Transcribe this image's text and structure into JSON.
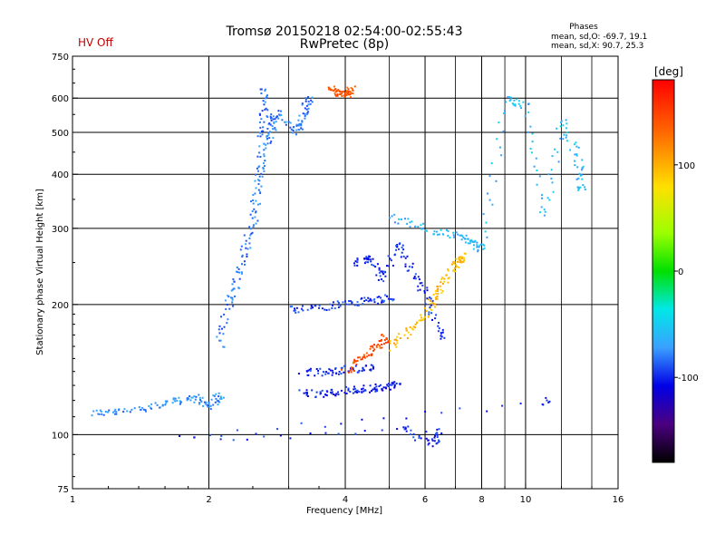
{
  "header": {
    "title_line1": "Tromsø 20150218 02:54:00-02:55:43",
    "title_line2": "RwPretec (8p)",
    "hv_status": "HV Off",
    "phases_label": "Phases",
    "phases_o": "mean, sd,O: -69.7, 19.1",
    "phases_x": "mean, sd,X:  90.7, 25.3"
  },
  "colors": {
    "hv_status": "#c00000",
    "grid": "#000000"
  },
  "chart_data": {
    "type": "scatter",
    "title": "Tromsø 20150218 02:54:00-02:55:43",
    "subtitle": "RwPretec (8p)",
    "xlabel": "Frequency [MHz]",
    "ylabel": "Stationary phase Virtual Height [km]",
    "x_scale": "log",
    "y_scale": "log",
    "xlim": [
      1,
      16
    ],
    "ylim": [
      75,
      750
    ],
    "x_ticks": [
      1,
      2,
      4,
      6,
      8,
      10,
      16
    ],
    "x_minor": [
      3,
      5,
      7,
      9,
      12,
      14
    ],
    "y_ticks": [
      75,
      100,
      200,
      300,
      400,
      500,
      600,
      750
    ],
    "colorbar": {
      "label": "[deg]",
      "range": [
        -180,
        180
      ],
      "ticks": [
        100,
        0,
        -100
      ]
    },
    "clusters": [
      {
        "name": "O-trace low band",
        "phase": -75,
        "points": [
          [
            1.1,
            113
          ],
          [
            1.25,
            113
          ],
          [
            1.5,
            117
          ],
          [
            1.7,
            120
          ],
          [
            1.85,
            122
          ],
          [
            2.0,
            117
          ],
          [
            2.1,
            123
          ]
        ]
      },
      {
        "name": "O-trace steep rise",
        "phase": -80,
        "points": [
          [
            2.1,
            160
          ],
          [
            2.2,
            200
          ],
          [
            2.3,
            230
          ],
          [
            2.4,
            270
          ],
          [
            2.5,
            320
          ],
          [
            2.55,
            380
          ],
          [
            2.6,
            430
          ],
          [
            2.62,
            520
          ],
          [
            2.65,
            620
          ]
        ]
      },
      {
        "name": "O-trace F layer top",
        "phase": -80,
        "points": [
          [
            2.7,
            470
          ],
          [
            2.75,
            520
          ],
          [
            2.8,
            560
          ],
          [
            3.1,
            500
          ],
          [
            3.2,
            540
          ],
          [
            3.3,
            600
          ]
        ]
      },
      {
        "name": "X-trace upper",
        "phase": 140,
        "points": [
          [
            3.7,
            640
          ],
          [
            3.85,
            620
          ],
          [
            4.0,
            610
          ],
          [
            4.1,
            630
          ]
        ]
      },
      {
        "name": "Band 125 km",
        "phase": -105,
        "points": [
          [
            3.2,
            125
          ],
          [
            3.6,
            125
          ],
          [
            4.0,
            127
          ],
          [
            4.4,
            128
          ],
          [
            4.8,
            129
          ],
          [
            5.2,
            131
          ]
        ]
      },
      {
        "name": "Band 145 km",
        "phase": -100,
        "points": [
          [
            3.2,
            140
          ],
          [
            3.6,
            140
          ],
          [
            4.0,
            142
          ],
          [
            4.5,
            143
          ]
        ]
      },
      {
        "name": "Band 190 km",
        "phase": -95,
        "points": [
          [
            3.0,
            195
          ],
          [
            3.5,
            198
          ],
          [
            4.0,
            202
          ],
          [
            4.5,
            205
          ],
          [
            5.0,
            208
          ]
        ]
      },
      {
        "name": "X-echo ramp",
        "phase": 145,
        "points": [
          [
            4.0,
            140
          ],
          [
            4.3,
            150
          ],
          [
            4.6,
            158
          ],
          [
            4.9,
            168
          ]
        ]
      },
      {
        "name": "X-echo yellow",
        "phase": 95,
        "points": [
          [
            5.0,
            160
          ],
          [
            5.5,
            175
          ],
          [
            6.0,
            190
          ],
          [
            6.3,
            210
          ],
          [
            6.6,
            230
          ],
          [
            7.0,
            250
          ],
          [
            7.2,
            260
          ]
        ]
      },
      {
        "name": "Spread F mid",
        "phase": -100,
        "points": [
          [
            4.2,
            250
          ],
          [
            4.5,
            260
          ],
          [
            4.8,
            230
          ],
          [
            5.2,
            280
          ],
          [
            5.6,
            240
          ],
          [
            6.0,
            210
          ],
          [
            6.5,
            170
          ]
        ]
      },
      {
        "name": "Upper sparse",
        "phase": -60,
        "points": [
          [
            5.0,
            320
          ],
          [
            6.0,
            300
          ],
          [
            7.0,
            290
          ],
          [
            7.6,
            280
          ],
          [
            8.0,
            270
          ],
          [
            9.0,
            600
          ],
          [
            10.0,
            580
          ],
          [
            11.0,
            320
          ],
          [
            12.0,
            540
          ],
          [
            13.0,
            440
          ],
          [
            13.2,
            370
          ]
        ]
      },
      {
        "name": "Low sparse",
        "phase": -100,
        "points": [
          [
            5.3,
            105
          ],
          [
            6.2,
            95
          ],
          [
            6.4,
            103
          ],
          [
            1.7,
            98
          ],
          [
            11.0,
            120
          ]
        ]
      }
    ]
  }
}
